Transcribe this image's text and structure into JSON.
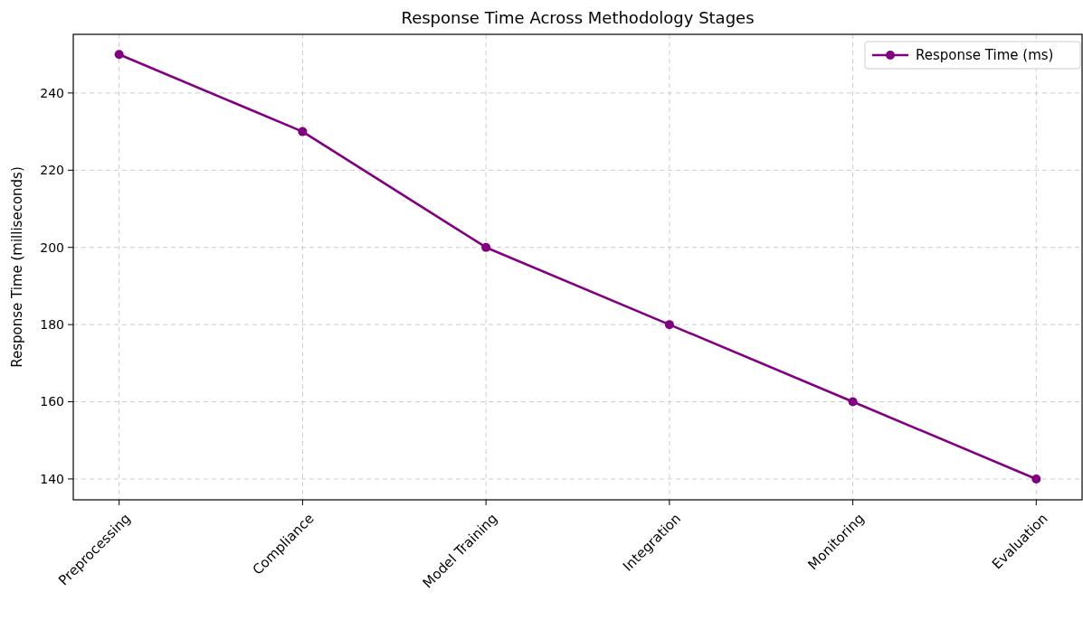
{
  "chart_data": {
    "type": "line",
    "title": "Response Time Across Methodology Stages",
    "ylabel": "Response Time (milliseconds)",
    "categories": [
      "Preprocessing",
      "Compliance",
      "Model Training",
      "Integration",
      "Monitoring",
      "Evaluation"
    ],
    "series": [
      {
        "name": "Response Time (ms)",
        "color": "#800080",
        "values": [
          250,
          230,
          200,
          180,
          160,
          140
        ]
      }
    ],
    "ylim": [
      134.6,
      255.2
    ],
    "yticks": [
      140,
      160,
      180,
      200,
      220,
      240
    ],
    "grid": true,
    "legend": "top right",
    "marker": "circle",
    "line_style": "solid"
  }
}
